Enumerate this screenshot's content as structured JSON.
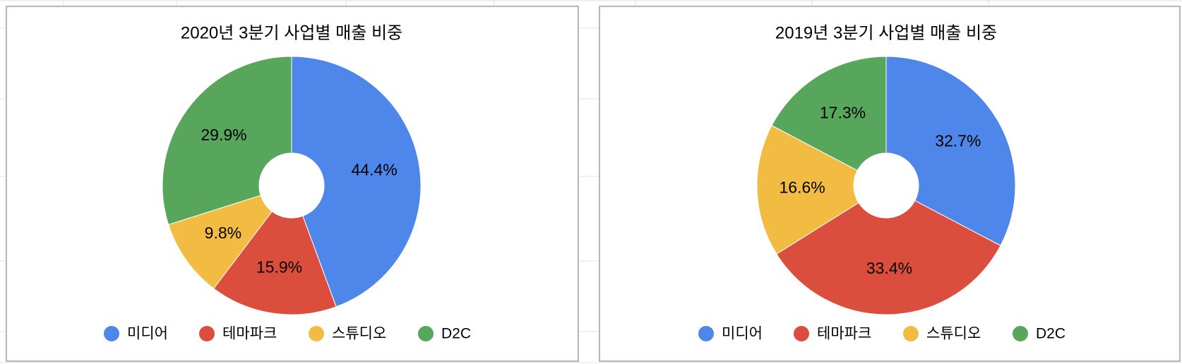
{
  "chart_data": [
    {
      "type": "pie",
      "title": "2020년 3분기 사업별 매출 비중",
      "categories": [
        "미디어",
        "테마파크",
        "스튜디오",
        "D2C"
      ],
      "values": [
        44.4,
        15.9,
        9.8,
        29.9
      ],
      "value_labels": [
        "44.4%",
        "15.9%",
        "9.8%",
        "29.9%"
      ],
      "colors": [
        "#4e86ea",
        "#db4e3e",
        "#f2bc42",
        "#58a65c"
      ],
      "legend": "bottom"
    },
    {
      "type": "pie",
      "title": "2019년 3분기 사업별 매출 비중",
      "categories": [
        "미디어",
        "테마파크",
        "스튜디오",
        "D2C"
      ],
      "values": [
        32.7,
        33.4,
        16.6,
        17.3
      ],
      "value_labels": [
        "32.7%",
        "33.4%",
        "16.6%",
        "17.3%"
      ],
      "colors": [
        "#4e86ea",
        "#db4e3e",
        "#f2bc42",
        "#58a65c"
      ],
      "legend": "bottom"
    }
  ]
}
